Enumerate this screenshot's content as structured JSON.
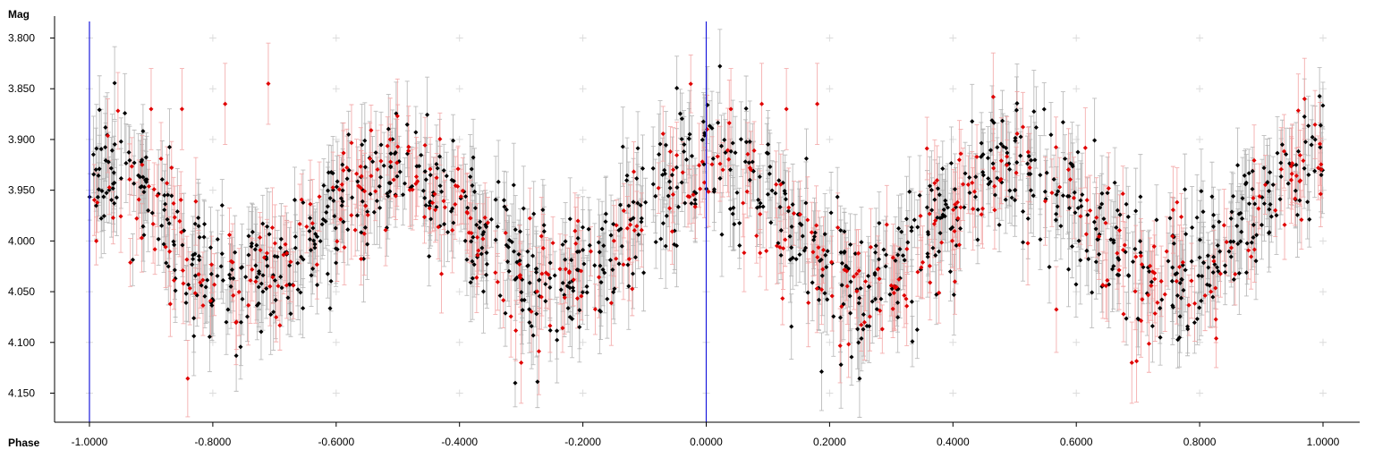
{
  "chart_data": {
    "type": "scatter",
    "title": "",
    "xlabel": "Phase",
    "ylabel": "Mag",
    "xlim": [
      -1.0,
      1.0
    ],
    "ylim": [
      4.18,
      3.78
    ],
    "y_inverted": true,
    "x_ticks": [
      "-1.0000",
      "-0.8000",
      "-0.6000",
      "-0.4000",
      "-0.2000",
      "0.0000",
      "0.2000",
      "0.4000",
      "0.6000",
      "0.8000",
      "1.0000"
    ],
    "x_tick_values": [
      -1.0,
      -0.8,
      -0.6,
      -0.4,
      -0.2,
      0.0,
      0.2,
      0.4,
      0.6,
      0.8,
      1.0
    ],
    "y_ticks": [
      "3.800",
      "3.850",
      "3.900",
      "3.950",
      "4.000",
      "4.050",
      "4.100",
      "4.150"
    ],
    "y_tick_values": [
      3.8,
      3.85,
      3.9,
      3.95,
      4.0,
      4.05,
      4.1,
      4.15
    ],
    "grid": "cross markers at tick intersections",
    "vertical_lines_x": [
      -1.0,
      0.0
    ],
    "series": [
      {
        "color": "#000000",
        "error_bar_color": "#b0b0b0",
        "model": {
          "mean_mag": 3.985,
          "semi_amplitude": 0.06,
          "cycles_per_unit_phase": 2,
          "brightest_phase": 0.0
        },
        "scatter_sd": 0.032,
        "typical_error": 0.03,
        "count": 1050,
        "phase_coverage": "full"
      },
      {
        "color": "#e00000",
        "error_bar_color": "#f2a0a0",
        "model": {
          "mean_mag": 3.985,
          "semi_amplitude": 0.06,
          "cycles_per_unit_phase": 2,
          "brightest_phase": 0.0
        },
        "scatter_sd": 0.032,
        "typical_error": 0.03,
        "count": 450,
        "phase_coverage": "full"
      }
    ],
    "extreme_points": [
      {
        "x": -0.9,
        "y": 3.87
      },
      {
        "x": -0.85,
        "y": 3.87
      },
      {
        "x": -0.78,
        "y": 3.865
      },
      {
        "x": -0.71,
        "y": 3.845
      },
      {
        "x": -0.3,
        "y": 4.12
      },
      {
        "x": 0.04,
        "y": 3.87
      },
      {
        "x": 0.09,
        "y": 3.865
      },
      {
        "x": 0.13,
        "y": 3.87
      },
      {
        "x": 0.18,
        "y": 3.865
      },
      {
        "x": 0.69,
        "y": 4.12
      },
      {
        "x": 0.97,
        "y": 3.86
      }
    ]
  }
}
